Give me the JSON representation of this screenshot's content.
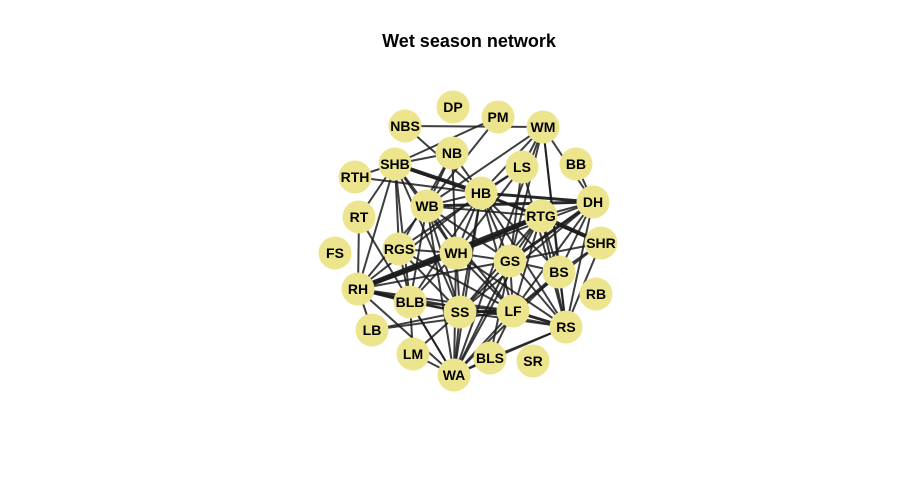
{
  "title": "Wet season network",
  "colors": {
    "node_fill": "#ede58e",
    "edge": "#1c1c1c",
    "background": "#ffffff"
  },
  "nodes": [
    {
      "id": "DP"
    },
    {
      "id": "NBS"
    },
    {
      "id": "PM"
    },
    {
      "id": "WM"
    },
    {
      "id": "NB"
    },
    {
      "id": "SHB"
    },
    {
      "id": "LS"
    },
    {
      "id": "BB"
    },
    {
      "id": "RTH"
    },
    {
      "id": "HB"
    },
    {
      "id": "DH"
    },
    {
      "id": "WB"
    },
    {
      "id": "RTG"
    },
    {
      "id": "RT"
    },
    {
      "id": "SHR"
    },
    {
      "id": "FS"
    },
    {
      "id": "RGS"
    },
    {
      "id": "WH"
    },
    {
      "id": "GS"
    },
    {
      "id": "BS"
    },
    {
      "id": "RH"
    },
    {
      "id": "BLB"
    },
    {
      "id": "RB"
    },
    {
      "id": "SS"
    },
    {
      "id": "LF"
    },
    {
      "id": "RS"
    },
    {
      "id": "LB"
    },
    {
      "id": "LM"
    },
    {
      "id": "BLS"
    },
    {
      "id": "SR"
    },
    {
      "id": "WA"
    }
  ],
  "edges": [
    {
      "source": "RH",
      "target": "RTG",
      "weight": 5
    },
    {
      "source": "RH",
      "target": "WH",
      "weight": 4
    },
    {
      "source": "SHB",
      "target": "HB",
      "weight": 4
    },
    {
      "source": "RTG",
      "target": "SHR",
      "weight": 4
    },
    {
      "source": "WH",
      "target": "RTG",
      "weight": 3
    },
    {
      "source": "HB",
      "target": "DH",
      "weight": 3
    },
    {
      "source": "WB",
      "target": "DH",
      "weight": 3
    },
    {
      "source": "GS",
      "target": "DH",
      "weight": 3
    },
    {
      "source": "SS",
      "target": "LF",
      "weight": 3
    },
    {
      "source": "LF",
      "target": "RS",
      "weight": 3
    },
    {
      "source": "RH",
      "target": "BLB",
      "weight": 3
    },
    {
      "source": "BS",
      "target": "SHR",
      "weight": 2
    },
    {
      "source": "NBS",
      "target": "HB",
      "weight": 2
    },
    {
      "source": "NBS",
      "target": "WM",
      "weight": 2
    },
    {
      "source": "PM",
      "target": "SHB",
      "weight": 2
    },
    {
      "source": "PM",
      "target": "WB",
      "weight": 2
    },
    {
      "source": "WM",
      "target": "LS",
      "weight": 2
    },
    {
      "source": "WM",
      "target": "WB",
      "weight": 2
    },
    {
      "source": "WM",
      "target": "HB",
      "weight": 2
    },
    {
      "source": "WM",
      "target": "BS",
      "weight": 2
    },
    {
      "source": "WM",
      "target": "GS",
      "weight": 2
    },
    {
      "source": "WM",
      "target": "DH",
      "weight": 2
    },
    {
      "source": "NB",
      "target": "HB",
      "weight": 2
    },
    {
      "source": "NB",
      "target": "SHB",
      "weight": 2
    },
    {
      "source": "NB",
      "target": "WB",
      "weight": 2
    },
    {
      "source": "NB",
      "target": "RGS",
      "weight": 2
    },
    {
      "source": "SHB",
      "target": "RT",
      "weight": 2
    },
    {
      "source": "SHB",
      "target": "RH",
      "weight": 2
    },
    {
      "source": "SHB",
      "target": "WB",
      "weight": 2
    },
    {
      "source": "SHB",
      "target": "BLB",
      "weight": 2
    },
    {
      "source": "SHB",
      "target": "WH",
      "weight": 2
    },
    {
      "source": "SHB",
      "target": "RTG",
      "weight": 2
    },
    {
      "source": "SHB",
      "target": "SS",
      "weight": 2
    },
    {
      "source": "LS",
      "target": "HB",
      "weight": 2
    },
    {
      "source": "LS",
      "target": "RGS",
      "weight": 2
    },
    {
      "source": "LS",
      "target": "WH",
      "weight": 2
    },
    {
      "source": "LS",
      "target": "GS",
      "weight": 2
    },
    {
      "source": "HB",
      "target": "WB",
      "weight": 2
    },
    {
      "source": "HB",
      "target": "RTG",
      "weight": 2
    },
    {
      "source": "HB",
      "target": "WH",
      "weight": 2
    },
    {
      "source": "HB",
      "target": "GS",
      "weight": 2
    },
    {
      "source": "HB",
      "target": "BS",
      "weight": 2
    },
    {
      "source": "HB",
      "target": "RS",
      "weight": 2
    },
    {
      "source": "HB",
      "target": "SHR",
      "weight": 2
    },
    {
      "source": "HB",
      "target": "LF",
      "weight": 2
    },
    {
      "source": "HB",
      "target": "SS",
      "weight": 2
    },
    {
      "source": "HB",
      "target": "BLB",
      "weight": 2
    },
    {
      "source": "HB",
      "target": "RH",
      "weight": 2
    },
    {
      "source": "HB",
      "target": "WA",
      "weight": 2
    },
    {
      "source": "WB",
      "target": "RTG",
      "weight": 2
    },
    {
      "source": "WB",
      "target": "WH",
      "weight": 2
    },
    {
      "source": "WB",
      "target": "GS",
      "weight": 2
    },
    {
      "source": "WB",
      "target": "BLB",
      "weight": 2
    },
    {
      "source": "WB",
      "target": "SS",
      "weight": 2
    },
    {
      "source": "WB",
      "target": "LF",
      "weight": 2
    },
    {
      "source": "WB",
      "target": "WA",
      "weight": 2
    },
    {
      "source": "WB",
      "target": "RH",
      "weight": 2
    },
    {
      "source": "RTG",
      "target": "DH",
      "weight": 2
    },
    {
      "source": "RTG",
      "target": "GS",
      "weight": 2
    },
    {
      "source": "RTG",
      "target": "BS",
      "weight": 2
    },
    {
      "source": "RTG",
      "target": "RS",
      "weight": 2
    },
    {
      "source": "RTG",
      "target": "LF",
      "weight": 2
    },
    {
      "source": "RTG",
      "target": "SS",
      "weight": 2
    },
    {
      "source": "DH",
      "target": "BS",
      "weight": 2
    },
    {
      "source": "DH",
      "target": "LF",
      "weight": 2
    },
    {
      "source": "DH",
      "target": "WH",
      "weight": 2
    },
    {
      "source": "DH",
      "target": "SS",
      "weight": 2
    },
    {
      "source": "BB",
      "target": "DH",
      "weight": 2
    },
    {
      "source": "SHR",
      "target": "GS",
      "weight": 2
    },
    {
      "source": "SHR",
      "target": "LF",
      "weight": 2
    },
    {
      "source": "RGS",
      "target": "WH",
      "weight": 2
    },
    {
      "source": "RGS",
      "target": "BLB",
      "weight": 2
    },
    {
      "source": "RGS",
      "target": "SS",
      "weight": 2
    },
    {
      "source": "RGS",
      "target": "LF",
      "weight": 2
    },
    {
      "source": "WH",
      "target": "GS",
      "weight": 2
    },
    {
      "source": "WH",
      "target": "LF",
      "weight": 2
    },
    {
      "source": "WH",
      "target": "SS",
      "weight": 2
    },
    {
      "source": "WH",
      "target": "RS",
      "weight": 2
    },
    {
      "source": "WH",
      "target": "WA",
      "weight": 2
    },
    {
      "source": "WH",
      "target": "BLB",
      "weight": 2
    },
    {
      "source": "GS",
      "target": "BS",
      "weight": 2
    },
    {
      "source": "GS",
      "target": "RS",
      "weight": 2
    },
    {
      "source": "GS",
      "target": "LF",
      "weight": 2
    },
    {
      "source": "GS",
      "target": "SS",
      "weight": 2
    },
    {
      "source": "GS",
      "target": "BLS",
      "weight": 2
    },
    {
      "source": "GS",
      "target": "WA",
      "weight": 2
    },
    {
      "source": "BS",
      "target": "LF",
      "weight": 2
    },
    {
      "source": "BS",
      "target": "RS",
      "weight": 2
    },
    {
      "source": "BS",
      "target": "WA",
      "weight": 2
    },
    {
      "source": "RH",
      "target": "SS",
      "weight": 2
    },
    {
      "source": "RH",
      "target": "LF",
      "weight": 2
    },
    {
      "source": "RH",
      "target": "GS",
      "weight": 2
    },
    {
      "source": "RH",
      "target": "WA",
      "weight": 2
    },
    {
      "source": "RH",
      "target": "LB",
      "weight": 2
    },
    {
      "source": "RT",
      "target": "RH",
      "weight": 2
    },
    {
      "source": "RT",
      "target": "WA",
      "weight": 2
    },
    {
      "source": "BLB",
      "target": "SS",
      "weight": 2
    },
    {
      "source": "BLB",
      "target": "LF",
      "weight": 2
    },
    {
      "source": "BLB",
      "target": "WA",
      "weight": 2
    },
    {
      "source": "SS",
      "target": "LF",
      "weight": 2
    },
    {
      "source": "SS",
      "target": "RS",
      "weight": 2
    },
    {
      "source": "SS",
      "target": "WA",
      "weight": 2
    },
    {
      "source": "SS",
      "target": "LM",
      "weight": 2
    },
    {
      "source": "LF",
      "target": "WA",
      "weight": 2
    },
    {
      "source": "LF",
      "target": "BLS",
      "weight": 2
    },
    {
      "source": "RS",
      "target": "WA",
      "weight": 2
    },
    {
      "source": "RS",
      "target": "BLS",
      "weight": 2
    },
    {
      "source": "LB",
      "target": "SS",
      "weight": 2
    },
    {
      "source": "LB",
      "target": "LF",
      "weight": 2
    },
    {
      "source": "LM",
      "target": "WA",
      "weight": 2
    },
    {
      "source": "LM",
      "target": "BLB",
      "weight": 2
    },
    {
      "source": "WA",
      "target": "BLS",
      "weight": 2
    },
    {
      "source": "RTH",
      "target": "HB",
      "weight": 2
    },
    {
      "source": "RTH",
      "target": "SHB",
      "weight": 2
    },
    {
      "source": "SHB",
      "target": "RGS",
      "weight": 2
    },
    {
      "source": "NB",
      "target": "WH",
      "weight": 2
    },
    {
      "source": "WM",
      "target": "RS",
      "weight": 2
    },
    {
      "source": "WM",
      "target": "WA",
      "weight": 2
    },
    {
      "source": "LS",
      "target": "RS",
      "weight": 2
    },
    {
      "source": "DH",
      "target": "RS",
      "weight": 2
    },
    {
      "source": "SHR",
      "target": "RS",
      "weight": 2
    },
    {
      "source": "RTG",
      "target": "WA",
      "weight": 2
    },
    {
      "source": "RH",
      "target": "RS",
      "weight": 2
    }
  ]
}
